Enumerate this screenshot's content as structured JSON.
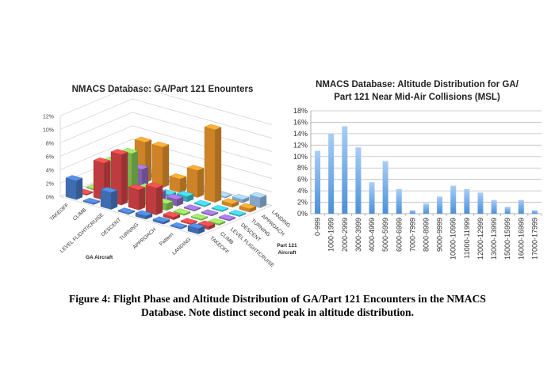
{
  "chart_data": [
    {
      "type": "bar3d",
      "title": "NMACS Database: GA/Part 121 Enounters",
      "x_axis_title": "GA Aircraft",
      "depth_axis_title": "Part 121 Aircraft",
      "y_ticks": [
        "0%",
        "2%",
        "4%",
        "6%",
        "8%",
        "10%",
        "12%"
      ],
      "ylim": [
        0,
        12
      ],
      "ga_categories": [
        "TAKEOFF",
        "CLIMB",
        "LEVEL FLIGHT/CRUISE",
        "DESCENT",
        "TURNING",
        "APPROACH",
        "Pattern",
        "LANDING"
      ],
      "part121_categories": [
        "TAKEOFF",
        "CLIMB",
        "LEVEL FLIGHT/CRUISE",
        "DESCENT",
        "TURNING",
        "APPROACH",
        "LANDING"
      ],
      "series_colors": [
        "#4a7fd0",
        "#e0474a",
        "#8fd35a",
        "#9a6fcf",
        "#3fc6dc",
        "#f29a2e",
        "#9cc3ee"
      ],
      "values": [
        [
          2.8,
          0.0,
          2.5,
          0.0,
          0.5,
          0.3,
          0.1,
          0.8
        ],
        [
          0.1,
          5.5,
          7.5,
          3.0,
          4.0,
          0.4,
          0.1,
          0.5
        ],
        [
          0.0,
          5.0,
          7.0,
          2.5,
          1.0,
          0.2,
          0.1,
          0.2
        ],
        [
          0.0,
          0.2,
          4.0,
          1.2,
          1.0,
          0.1,
          0.1,
          0.1
        ],
        [
          0.0,
          0.5,
          0.2,
          0.3,
          0.8,
          0.1,
          0.1,
          0.1
        ],
        [
          0.0,
          6.0,
          6.0,
          2.0,
          4.0,
          10.8,
          0.5,
          0.5
        ],
        [
          0.0,
          0.5,
          0.3,
          0.4,
          0.1,
          0.1,
          0.5,
          1.5
        ]
      ]
    },
    {
      "type": "bar",
      "title": "NMACS Database: Altitude Distribution for GA/ Part 121 Near Mid-Air Collisions (MSL)",
      "title_lines": [
        "NMACS Database: Altitude Distribution for GA/",
        "Part 121 Near Mid-Air Collisions (MSL)"
      ],
      "categories": [
        "0-999",
        "1000-1999",
        "2000-2999",
        "3000-3999",
        "4000-4999",
        "5000-5999",
        "6000-6999",
        "7000-7999",
        "8000-8999",
        "9000-9999",
        "10000-10999",
        "11000-11999",
        "12000-12999",
        "13000-13999",
        "15000-15999",
        "16000-16999",
        "17000-17999"
      ],
      "values": [
        11.0,
        14.0,
        15.3,
        11.6,
        5.5,
        9.2,
        4.3,
        0.6,
        1.8,
        3.0,
        4.9,
        4.3,
        3.7,
        2.4,
        1.2,
        2.4,
        0.6
      ],
      "y_ticks": [
        "0%",
        "2%",
        "4%",
        "6%",
        "8%",
        "10%",
        "12%",
        "14%",
        "16%",
        "18%"
      ],
      "ylim": [
        0,
        18
      ],
      "grid": true,
      "bar_color": "#4a90d9"
    }
  ],
  "caption": "Figure 4: Flight Phase and Altitude Distribution of GA/Part 121 Encounters in the NMACS Database. Note distinct second peak in altitude distribution."
}
